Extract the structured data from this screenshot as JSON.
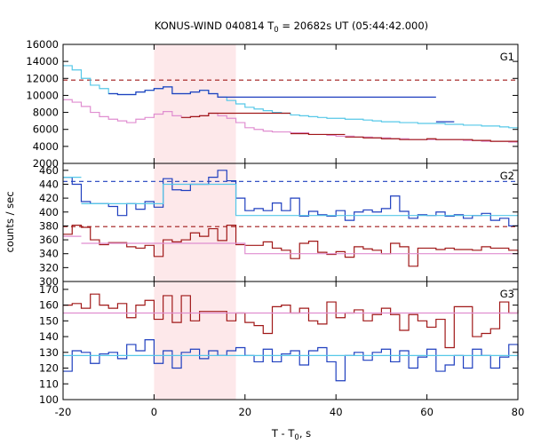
{
  "chart_data": {
    "type": "line",
    "title_main": "KONUS-WIND 040814 T",
    "title_sub": "0",
    "title_rest": " = 20682s UT (05:44:42.000)",
    "xlabel_main": "T - T",
    "xlabel_sub": "0",
    "xlabel_rest": ", s",
    "ylabel": "counts / sec",
    "xlim": [
      -20,
      80
    ],
    "x_ticks": [
      "-20",
      "0",
      "20",
      "40",
      "60",
      "80"
    ],
    "x_tick_values": [
      -20,
      0,
      20,
      40,
      60,
      80
    ],
    "highlight_interval": [
      0,
      18
    ],
    "colors": {
      "dark_blue": "#1f3fbf",
      "light_blue": "#56c8e8",
      "dark_red": "#a01818",
      "pink": "#e08ed0",
      "highlight": "#fde8ea"
    },
    "panels": [
      {
        "name": "G1",
        "ylim": [
          2000,
          16000
        ],
        "y_ticks": [
          "2000",
          "4000",
          "6000",
          "8000",
          "10000",
          "12000",
          "14000",
          "16000"
        ],
        "y_tick_values": [
          2000,
          4000,
          6000,
          8000,
          10000,
          12000,
          14000,
          16000
        ],
        "dashed_levels": [
          {
            "y": 11800,
            "color": "dark_red"
          }
        ],
        "series": [
          {
            "color": "light_blue",
            "x": [
              -20,
              -18,
              -16,
              -14,
              -12,
              -10,
              -8,
              -6,
              -4,
              -2,
              0,
              2,
              4,
              6,
              8,
              10,
              12,
              14,
              16,
              18,
              20,
              22,
              24,
              26,
              28,
              30,
              32,
              34,
              36,
              38,
              40,
              42,
              44,
              46,
              48,
              50,
              52,
              54,
              56,
              58,
              60,
              62,
              64,
              66,
              68,
              70,
              72,
              74,
              76,
              78,
              80
            ],
            "y": [
              13500,
              13000,
              12000,
              11200,
              10800,
              10200,
              10100,
              10100,
              10400,
              10600,
              10800,
              11000,
              10200,
              10200,
              10400,
              10600,
              10200,
              9800,
              9400,
              9000,
              8600,
              8400,
              8200,
              8000,
              7900,
              7700,
              7600,
              7500,
              7400,
              7300,
              7300,
              7200,
              7200,
              7100,
              7000,
              6900,
              6900,
              6800,
              6800,
              6700,
              6700,
              6700,
              6600,
              6600,
              6500,
              6500,
              6400,
              6400,
              6300,
              6200,
              6100
            ]
          },
          {
            "color": "dark_blue",
            "highlight_only_between": [
              -12,
              16
            ],
            "x": [
              -10,
              -8,
              -6,
              -4,
              -2,
              0,
              2,
              4,
              6,
              8,
              10,
              12,
              14,
              62,
              64
            ],
            "y": [
              10200,
              10100,
              10100,
              10400,
              10600,
              10800,
              11000,
              10200,
              10200,
              10400,
              10600,
              10200,
              9800,
              6900,
              6900
            ]
          },
          {
            "color": "pink",
            "x": [
              -20,
              -18,
              -16,
              -14,
              -12,
              -10,
              -8,
              -6,
              -4,
              -2,
              0,
              2,
              4,
              6,
              8,
              10,
              12,
              14,
              16,
              18,
              20,
              22,
              24,
              26,
              28,
              30,
              32,
              34,
              36,
              38,
              40,
              42,
              44,
              46,
              48,
              50,
              52,
              54,
              56,
              58,
              60,
              62,
              64,
              66,
              68,
              70,
              72,
              74,
              76,
              78,
              80
            ],
            "y": [
              9500,
              9200,
              8700,
              8000,
              7500,
              7200,
              7000,
              6800,
              7200,
              7400,
              7800,
              8100,
              7600,
              7400,
              7500,
              7600,
              7900,
              7600,
              7300,
              6800,
              6200,
              6000,
              5800,
              5700,
              5700,
              5600,
              5600,
              5400,
              5400,
              5300,
              5200,
              5200,
              5100,
              5100,
              5000,
              5000,
              4900,
              4900,
              4800,
              4800,
              4800,
              4800,
              4800,
              4800,
              4700,
              4700,
              4600,
              4600,
              4600,
              4500,
              4500
            ]
          },
          {
            "color": "dark_red",
            "highlight_only_between": [
              6,
              80
            ],
            "x": [
              6,
              8,
              10,
              12,
              30,
              32,
              34,
              36,
              42,
              44,
              46,
              48,
              50,
              52,
              54,
              56,
              58,
              60,
              62,
              64,
              66,
              68,
              70,
              72,
              74,
              76,
              78
            ],
            "y": [
              7400,
              7500,
              7600,
              7900,
              5500,
              5500,
              5400,
              5400,
              5100,
              5100,
              5000,
              5000,
              4900,
              4900,
              4800,
              4800,
              4800,
              4900,
              4800,
              4800,
              4800,
              4800,
              4700,
              4700,
              4600,
              4600,
              4600
            ]
          }
        ]
      },
      {
        "name": "G2",
        "ylim": [
          300,
          470
        ],
        "y_ticks": [
          "300",
          "320",
          "340",
          "360",
          "380",
          "400",
          "420",
          "440",
          "460"
        ],
        "y_tick_values": [
          300,
          320,
          340,
          360,
          380,
          400,
          420,
          440,
          460
        ],
        "dashed_levels": [
          {
            "y": 444,
            "color": "dark_blue"
          },
          {
            "y": 379,
            "color": "dark_red"
          }
        ],
        "series": [
          {
            "color": "dark_blue",
            "x": [
              -20,
              -18,
              -16,
              -14,
              -12,
              -10,
              -8,
              -6,
              -4,
              -2,
              0,
              2,
              4,
              6,
              8,
              10,
              12,
              14,
              16,
              18,
              20,
              22,
              24,
              26,
              28,
              30,
              32,
              34,
              36,
              38,
              40,
              42,
              44,
              46,
              48,
              50,
              52,
              54,
              56,
              58,
              60,
              62,
              64,
              66,
              68,
              70,
              72,
              74,
              76,
              78,
              80
            ],
            "y": [
              450,
              440,
              415,
              412,
              412,
              408,
              395,
              412,
              404,
              415,
              407,
              448,
              432,
              431,
              440,
              440,
              450,
              460,
              445,
              420,
              402,
              405,
              402,
              413,
              402,
              420,
              394,
              401,
              396,
              394,
              402,
              388,
              400,
              403,
              400,
              405,
              423,
              401,
              391,
              396,
              395,
              400,
              394,
              396,
              391,
              395,
              398,
              388,
              391,
              380,
              381
            ]
          },
          {
            "color": "light_blue",
            "x": [
              -20,
              -16,
              -14,
              -2,
              0,
              2,
              16,
              18,
              20,
              80
            ],
            "y": [
              450,
              412,
              412,
              412,
              412,
              440,
              440,
              395,
              395,
              395
            ]
          },
          {
            "color": "dark_red",
            "x": [
              -20,
              -18,
              -16,
              -14,
              -12,
              -10,
              -8,
              -6,
              -4,
              -2,
              0,
              2,
              4,
              6,
              8,
              10,
              12,
              14,
              16,
              18,
              20,
              22,
              24,
              26,
              28,
              30,
              32,
              34,
              36,
              38,
              40,
              42,
              44,
              46,
              48,
              50,
              52,
              54,
              56,
              58,
              60,
              62,
              64,
              66,
              68,
              70,
              72,
              74,
              76,
              78,
              80
            ],
            "y": [
              368,
              381,
              378,
              360,
              353,
              356,
              356,
              350,
              348,
              352,
              336,
              360,
              357,
              360,
              370,
              365,
              376,
              359,
              381,
              353,
              352,
              352,
              357,
              348,
              345,
              333,
              355,
              358,
              342,
              339,
              343,
              335,
              350,
              347,
              345,
              340,
              355,
              350,
              322,
              348,
              348,
              346,
              348,
              346,
              346,
              345,
              350,
              348,
              348,
              345,
              339
            ]
          },
          {
            "color": "pink",
            "x": [
              -20,
              -16,
              -14,
              18,
              20,
              80
            ],
            "y": [
              365,
              355,
              355,
              355,
              340,
              340
            ]
          }
        ]
      },
      {
        "name": "G3",
        "ylim": [
          100,
          175
        ],
        "y_ticks": [
          "100",
          "110",
          "120",
          "130",
          "140",
          "150",
          "160",
          "170"
        ],
        "y_tick_values": [
          100,
          110,
          120,
          130,
          140,
          150,
          160,
          170
        ],
        "dashed_levels": [],
        "series": [
          {
            "color": "dark_red",
            "x": [
              -20,
              -18,
              -16,
              -14,
              -12,
              -10,
              -8,
              -6,
              -4,
              -2,
              0,
              2,
              4,
              6,
              8,
              10,
              12,
              14,
              16,
              18,
              20,
              22,
              24,
              26,
              28,
              30,
              32,
              34,
              36,
              38,
              40,
              42,
              44,
              46,
              48,
              50,
              52,
              54,
              56,
              58,
              60,
              62,
              64,
              66,
              68,
              70,
              72,
              74,
              76,
              78,
              80
            ],
            "y": [
              160,
              161,
              158,
              167,
              160,
              158,
              161,
              152,
              160,
              163,
              151,
              166,
              149,
              166,
              150,
              156,
              156,
              156,
              150,
              155,
              149,
              147,
              142,
              159,
              160,
              155,
              158,
              150,
              148,
              162,
              152,
              155,
              157,
              150,
              154,
              158,
              154,
              144,
              154,
              150,
              146,
              151,
              133,
              159,
              159,
              140,
              142,
              145,
              162,
              155,
              157
            ]
          },
          {
            "color": "pink",
            "x": [
              -20,
              80
            ],
            "y": [
              155,
              155
            ]
          },
          {
            "color": "dark_blue",
            "x": [
              -20,
              -18,
              -16,
              -14,
              -12,
              -10,
              -8,
              -6,
              -4,
              -2,
              0,
              2,
              4,
              6,
              8,
              10,
              12,
              14,
              16,
              18,
              20,
              22,
              24,
              26,
              28,
              30,
              32,
              34,
              36,
              38,
              40,
              42,
              44,
              46,
              48,
              50,
              52,
              54,
              56,
              58,
              60,
              62,
              64,
              66,
              68,
              70,
              72,
              74,
              76,
              78,
              80
            ],
            "y": [
              118,
              131,
              130,
              123,
              129,
              130,
              126,
              135,
              131,
              138,
              123,
              131,
              120,
              130,
              132,
              126,
              131,
              128,
              131,
              133,
              128,
              124,
              132,
              124,
              129,
              131,
              122,
              131,
              133,
              124,
              112,
              128,
              130,
              125,
              130,
              132,
              124,
              131,
              120,
              127,
              132,
              118,
              122,
              128,
              120,
              132,
              128,
              120,
              127,
              135,
              125
            ]
          },
          {
            "color": "light_blue",
            "x": [
              -20,
              80
            ],
            "y": [
              128,
              128
            ]
          }
        ]
      }
    ]
  }
}
